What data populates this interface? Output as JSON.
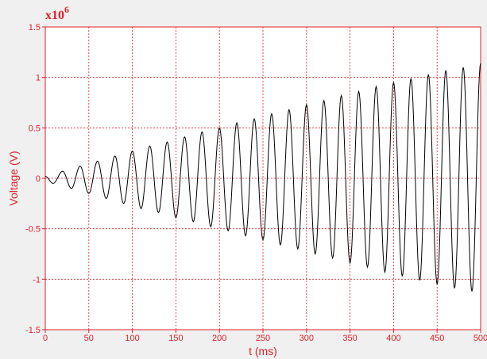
{
  "chart_data": {
    "type": "line",
    "xlabel": "t (ms)",
    "ylabel": "Voltage (V)",
    "y_multiplier": {
      "base": "x10",
      "exponent": "6"
    },
    "xlim": [
      0,
      500
    ],
    "ylim": [
      -1.5,
      1.5
    ],
    "x_ticks": [
      0,
      50,
      100,
      150,
      200,
      250,
      300,
      350,
      400,
      450,
      500
    ],
    "x_tick_labels": [
      "0",
      "50",
      "100",
      "150",
      "200",
      "250",
      "300",
      "350",
      "400",
      "450",
      "500"
    ],
    "y_ticks": [
      -1.5,
      -1,
      -0.5,
      0,
      0.5,
      1,
      1.5
    ],
    "y_tick_labels": [
      "-1.5",
      "-1",
      "-0.5",
      "0",
      "0.5",
      "1",
      "1.5"
    ],
    "grid": true,
    "colors": {
      "axis": "#e0202a",
      "grid": "#e0202a",
      "line": "#000000",
      "plot_bg": "#ffffff",
      "page_bg": "#f0f0f0"
    },
    "series": [
      {
        "x": [
          0,
          9,
          20,
          30,
          40,
          50,
          60,
          70,
          80,
          90,
          100,
          110,
          120,
          130,
          140,
          150,
          160,
          170,
          180,
          190,
          200,
          210,
          220,
          230,
          240,
          250,
          260,
          270,
          280,
          290,
          300,
          310,
          320,
          330,
          340,
          350,
          360,
          370,
          380,
          390,
          400,
          410,
          420,
          430,
          440,
          450,
          460,
          470,
          480,
          490,
          500
        ],
        "values": [
          0.02,
          -0.05,
          0.07,
          -0.1,
          0.12,
          -0.15,
          0.17,
          -0.2,
          0.22,
          -0.25,
          0.27,
          -0.3,
          0.32,
          -0.34,
          0.36,
          -0.39,
          0.41,
          -0.43,
          0.46,
          -0.48,
          0.5,
          -0.52,
          0.55,
          -0.57,
          0.59,
          -0.61,
          0.64,
          -0.66,
          0.68,
          -0.7,
          0.73,
          -0.75,
          0.77,
          -0.79,
          0.82,
          -0.84,
          0.86,
          -0.88,
          0.91,
          -0.93,
          0.95,
          -0.97,
          0.99,
          -1.01,
          1.03,
          -1.05,
          1.07,
          -1.09,
          1.1,
          -1.12,
          1.14
        ]
      }
    ]
  }
}
